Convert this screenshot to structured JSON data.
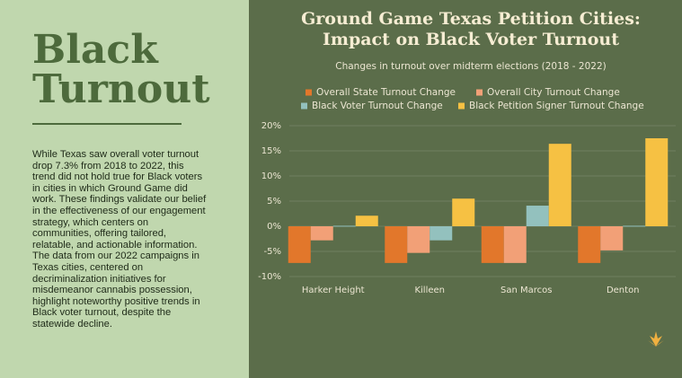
{
  "panel": {
    "heading": "Black Turnout",
    "body": "While Texas saw overall voter turnout drop 7.3% from 2018 to 2022, this trend did not hold true for Black voters in cities in which Ground Game did work. These findings validate our belief in the effectiveness of our engagement strategy, which centers on communities, offering tailored, relatable, and actionable information. The data from our 2022 campaigns in Texas cities, centered on decriminalization initiatives for misdemeanor cannabis possession, highlight noteworthy positive trends in Black voter turnout, despite the statewide decline."
  },
  "chart_data": {
    "type": "bar",
    "title": "Ground Game Texas Petition Cities: Impact on Black Voter Turnout",
    "subtitle": "Changes in turnout over midterm elections (2018 - 2022)",
    "categories": [
      "Harker Height",
      "Killeen",
      "San Marcos",
      "Denton"
    ],
    "series": [
      {
        "name": "Overall State Turnout Change",
        "color": "#e2772b",
        "values": [
          -7.3,
          -7.3,
          -7.3,
          -7.3
        ]
      },
      {
        "name": "Overall City Turnout Change",
        "color": "#f2a077",
        "values": [
          -2.8,
          -5.3,
          -7.3,
          -4.8
        ]
      },
      {
        "name": "Black Voter Turnout Change",
        "color": "#93c1be",
        "values": [
          0.1,
          -2.8,
          4.1,
          0.1
        ]
      },
      {
        "name": "Black Petition Signer Turnout Change",
        "color": "#f6c143",
        "values": [
          2.1,
          5.5,
          16.4,
          17.5
        ]
      }
    ],
    "ylim": [
      -10,
      20
    ],
    "yticks": [
      {
        "value": -10,
        "label": "-10%"
      },
      {
        "value": -5,
        "label": "-5%"
      },
      {
        "value": 0,
        "label": "0%"
      },
      {
        "value": 5,
        "label": "5%"
      },
      {
        "value": 10,
        "label": "10%"
      },
      {
        "value": 15,
        "label": "15%"
      },
      {
        "value": 20,
        "label": "20%"
      }
    ],
    "grid": true
  }
}
